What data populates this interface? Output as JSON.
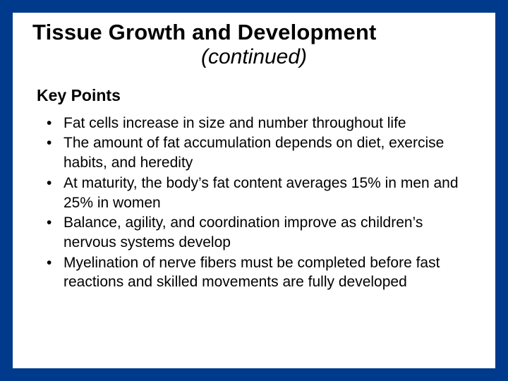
{
  "colors": {
    "frame_background": "#003a8c",
    "slide_background": "#ffffff",
    "text_color": "#000000"
  },
  "typography": {
    "title_fontsize": 31,
    "title_weight": "bold",
    "subtitle_fontsize": 30,
    "subtitle_style": "italic",
    "heading_fontsize": 23,
    "heading_weight": "bold",
    "body_fontsize": 21,
    "font_family": "Arial"
  },
  "layout": {
    "slide_width": 720,
    "slide_height": 540,
    "frame_padding": 18,
    "inner_padding": "10px 28px 20px 28px"
  },
  "title": "Tissue Growth and Development",
  "subtitle": "(continued)",
  "section_heading": "Key Points",
  "bullets": [
    "Fat cells increase in size and number throughout life",
    "The amount of fat accumulation depends on diet, exercise habits, and heredity",
    "At maturity, the body’s fat content averages 15% in men and 25% in women",
    "Balance, agility, and coordination improve as children’s nervous systems develop",
    "Myelination of nerve fibers must be completed before fast reactions and skilled movements are fully developed"
  ]
}
